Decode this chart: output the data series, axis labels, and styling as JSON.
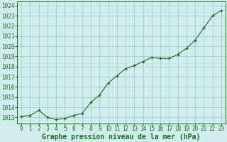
{
  "x": [
    0,
    1,
    2,
    3,
    4,
    5,
    6,
    7,
    8,
    9,
    10,
    11,
    12,
    13,
    14,
    15,
    16,
    17,
    18,
    19,
    20,
    21,
    22,
    23
  ],
  "y": [
    1013.1,
    1013.2,
    1013.7,
    1013.0,
    1012.8,
    1012.9,
    1013.2,
    1013.4,
    1014.5,
    1015.2,
    1016.4,
    1017.1,
    1017.8,
    1018.1,
    1018.5,
    1018.9,
    1018.8,
    1018.8,
    1019.2,
    1019.8,
    1020.6,
    1021.8,
    1023.0,
    1023.5
  ],
  "line_color": "#1a6b1a",
  "marker_color": "#1a6b1a",
  "bg_color": "#d0ecec",
  "grid_color": "#a0c8c8",
  "xlabel": "Graphe pression niveau de la mer (hPa)",
  "xlabel_color": "#1a6b1a",
  "tick_color": "#1a6b1a",
  "ylim": [
    1012.4,
    1024.4
  ],
  "yticks": [
    1013,
    1014,
    1015,
    1016,
    1017,
    1018,
    1019,
    1020,
    1021,
    1022,
    1023,
    1024
  ],
  "xticks": [
    0,
    1,
    2,
    3,
    4,
    5,
    6,
    7,
    8,
    9,
    10,
    11,
    12,
    13,
    14,
    15,
    16,
    17,
    18,
    19,
    20,
    21,
    22,
    23
  ],
  "xlim": [
    -0.5,
    23.5
  ],
  "tick_fontsize": 5.5,
  "xlabel_fontsize": 7
}
